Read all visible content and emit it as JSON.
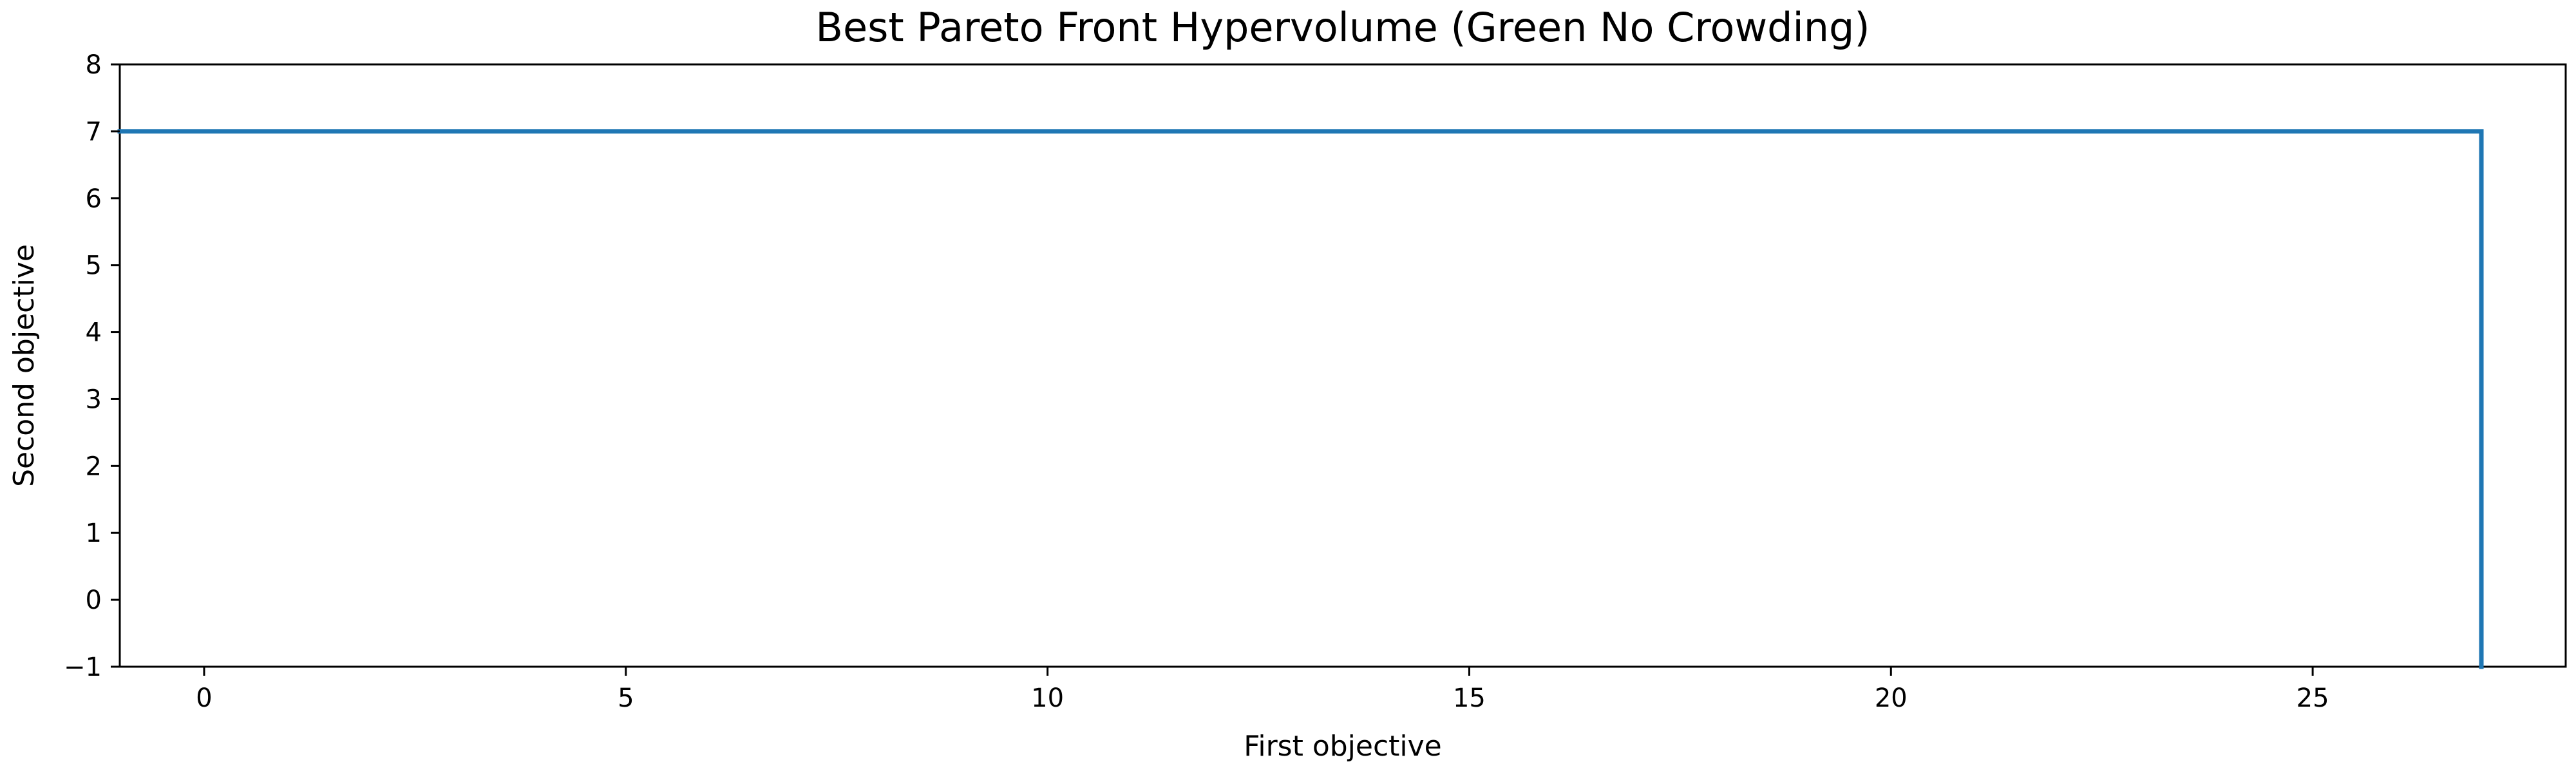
{
  "chart_data": {
    "type": "line",
    "title": "Best Pareto Front Hypervolume (Green No Crowding)",
    "xlabel": "First objective",
    "ylabel": "Second objective",
    "xlim": [
      -1,
      28
    ],
    "ylim": [
      -1,
      8
    ],
    "xticks": [
      0,
      5,
      10,
      15,
      20,
      25
    ],
    "yticks": [
      -1,
      0,
      1,
      2,
      3,
      4,
      5,
      6,
      7,
      8
    ],
    "ytick_labels": [
      "−1",
      "0",
      "1",
      "2",
      "3",
      "4",
      "5",
      "6",
      "7",
      "8"
    ],
    "grid": false,
    "legend": "none",
    "series": [
      {
        "color": "#1f77b4",
        "points": [
          {
            "x": -1,
            "y": 7
          },
          {
            "x": 27,
            "y": 7
          },
          {
            "x": 27,
            "y": -1
          }
        ]
      }
    ]
  }
}
